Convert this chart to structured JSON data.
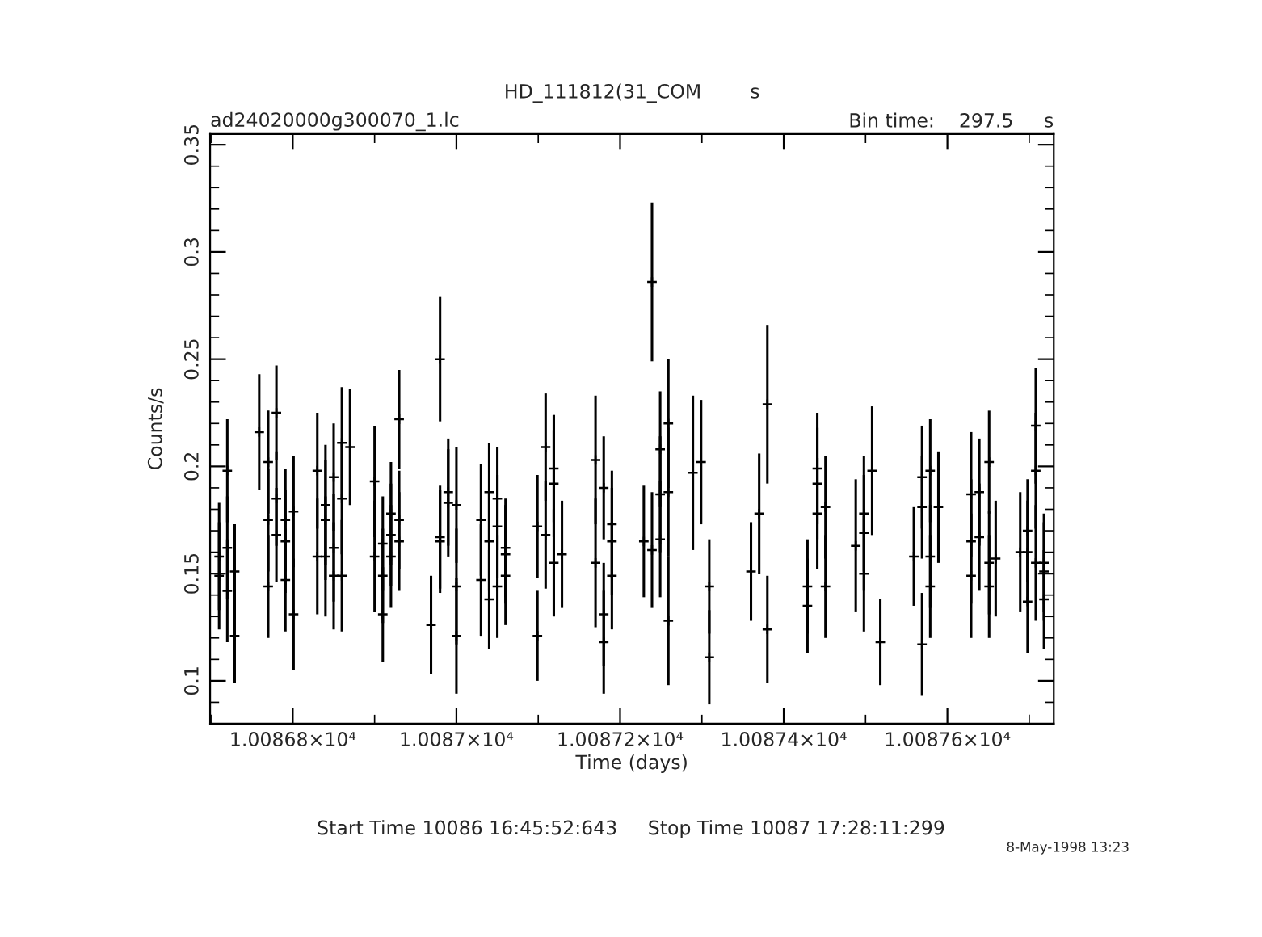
{
  "chart_data": {
    "type": "scatter",
    "title": "HD_111812(31_COM        s",
    "subtitle": "ad24020000g300070_1.lc",
    "xlabel": "Time (days)",
    "ylabel": "Counts/s",
    "annotations": [
      "Bin time:    297.5     s",
      "Start Time 10086 16:45:52:643     Stop Time 10087 17:28:11:299",
      "8-May-1998 13:23"
    ],
    "series": [
      {
        "color": "#000000",
        "x": [
          10086.71,
          10086.71,
          10086.72,
          10086.72,
          10086.72,
          10086.729,
          10086.729,
          10086.759,
          10086.77,
          10086.77,
          10086.77,
          10086.78,
          10086.78,
          10086.78,
          10086.791,
          10086.791,
          10086.791,
          10086.801,
          10086.801,
          10086.83,
          10086.83,
          10086.84,
          10086.84,
          10086.84,
          10086.85,
          10086.85,
          10086.85,
          10086.86,
          10086.86,
          10086.86,
          10086.87,
          10086.9,
          10086.9,
          10086.91,
          10086.91,
          10086.91,
          10086.92,
          10086.92,
          10086.92,
          10086.93,
          10086.93,
          10086.93,
          10086.969,
          10086.98,
          10086.98,
          10086.98,
          10086.99,
          10086.99,
          10087.0,
          10087.0,
          10087.0,
          10087.03,
          10087.03,
          10087.04,
          10087.04,
          10087.04,
          10087.05,
          10087.05,
          10087.05,
          10087.06,
          10087.06,
          10087.06,
          10087.099,
          10087.099,
          10087.109,
          10087.109,
          10087.119,
          10087.119,
          10087.119,
          10087.129,
          10087.17,
          10087.17,
          10087.18,
          10087.18,
          10087.18,
          10087.19,
          10087.19,
          10087.19,
          10087.229,
          10087.239,
          10087.239,
          10087.249,
          10087.249,
          10087.249,
          10087.259,
          10087.259,
          10087.259,
          10087.289,
          10087.299,
          10087.309,
          10087.309,
          10087.36,
          10087.37,
          10087.38,
          10087.38,
          10087.429,
          10087.429,
          10087.441,
          10087.441,
          10087.441,
          10087.451,
          10087.451,
          10087.488,
          10087.498,
          10087.498,
          10087.498,
          10087.508,
          10087.518,
          10087.559,
          10087.569,
          10087.569,
          10087.569,
          10087.579,
          10087.579,
          10087.579,
          10087.589,
          10087.629,
          10087.629,
          10087.629,
          10087.639,
          10087.639,
          10087.651,
          10087.651,
          10087.651,
          10087.659,
          10087.689,
          10087.698,
          10087.698,
          10087.698,
          10087.708,
          10087.708,
          10087.708,
          10087.718,
          10087.718,
          10087.718
        ],
        "values": [
          0.158,
          0.149,
          0.198,
          0.162,
          0.142,
          0.151,
          0.121,
          0.216,
          0.202,
          0.175,
          0.144,
          0.225,
          0.185,
          0.168,
          0.175,
          0.165,
          0.147,
          0.179,
          0.131,
          0.198,
          0.158,
          0.182,
          0.175,
          0.158,
          0.195,
          0.162,
          0.149,
          0.211,
          0.185,
          0.149,
          0.209,
          0.193,
          0.158,
          0.164,
          0.149,
          0.131,
          0.178,
          0.168,
          0.158,
          0.222,
          0.175,
          0.165,
          0.126,
          0.25,
          0.167,
          0.165,
          0.188,
          0.183,
          0.182,
          0.144,
          0.121,
          0.175,
          0.147,
          0.188,
          0.165,
          0.138,
          0.185,
          0.172,
          0.144,
          0.162,
          0.159,
          0.149,
          0.172,
          0.121,
          0.209,
          0.168,
          0.199,
          0.192,
          0.155,
          0.159,
          0.203,
          0.155,
          0.19,
          0.131,
          0.118,
          0.173,
          0.165,
          0.149,
          0.165,
          0.286,
          0.161,
          0.208,
          0.187,
          0.166,
          0.22,
          0.188,
          0.128,
          0.197,
          0.202,
          0.144,
          0.111,
          0.151,
          0.178,
          0.229,
          0.124,
          0.144,
          0.135,
          0.199,
          0.192,
          0.178,
          0.181,
          0.144,
          0.163,
          0.178,
          0.169,
          0.15,
          0.198,
          0.118,
          0.158,
          0.195,
          0.181,
          0.117,
          0.198,
          0.158,
          0.144,
          0.181,
          0.187,
          0.165,
          0.149,
          0.188,
          0.167,
          0.202,
          0.155,
          0.144,
          0.157,
          0.16,
          0.17,
          0.16,
          0.137,
          0.219,
          0.198,
          0.155,
          0.155,
          0.151,
          0.138
        ],
        "errors": [
          0.025,
          0.025,
          0.024,
          0.024,
          0.024,
          0.022,
          0.022,
          0.027,
          0.024,
          0.024,
          0.024,
          0.022,
          0.022,
          0.022,
          0.024,
          0.024,
          0.024,
          0.026,
          0.026,
          0.027,
          0.027,
          0.028,
          0.028,
          0.028,
          0.025,
          0.025,
          0.025,
          0.026,
          0.026,
          0.026,
          0.027,
          0.026,
          0.026,
          0.022,
          0.022,
          0.022,
          0.024,
          0.024,
          0.024,
          0.023,
          0.023,
          0.023,
          0.023,
          0.029,
          0.024,
          0.024,
          0.025,
          0.025,
          0.027,
          0.027,
          0.027,
          0.026,
          0.026,
          0.023,
          0.023,
          0.023,
          0.024,
          0.024,
          0.024,
          0.023,
          0.023,
          0.023,
          0.024,
          0.021,
          0.025,
          0.025,
          0.025,
          0.025,
          0.025,
          0.025,
          0.03,
          0.03,
          0.024,
          0.024,
          0.024,
          0.025,
          0.025,
          0.025,
          0.026,
          0.037,
          0.027,
          0.027,
          0.027,
          0.027,
          0.03,
          0.03,
          0.03,
          0.036,
          0.029,
          0.022,
          0.022,
          0.023,
          0.028,
          0.037,
          0.025,
          0.022,
          0.022,
          0.026,
          0.026,
          0.026,
          0.024,
          0.024,
          0.031,
          0.027,
          0.027,
          0.027,
          0.03,
          0.02,
          0.023,
          0.024,
          0.024,
          0.024,
          0.024,
          0.024,
          0.024,
          0.026,
          0.029,
          0.029,
          0.029,
          0.025,
          0.025,
          0.024,
          0.024,
          0.024,
          0.027,
          0.028,
          0.024,
          0.024,
          0.024,
          0.027,
          0.027,
          0.027,
          0.023,
          0.023,
          0.023
        ]
      }
    ],
    "marker": "cross",
    "xlim": [
      10086.699,
      10087.73
    ],
    "ylim": [
      0.08,
      0.355
    ],
    "xticks": [
      {
        "value": 10086.8,
        "label": "1.00868×10⁴"
      },
      {
        "value": 10087.0,
        "label": "1.0087×10⁴"
      },
      {
        "value": 10087.2,
        "label": "1.00872×10⁴"
      },
      {
        "value": 10087.4,
        "label": "1.00874×10⁴"
      },
      {
        "value": 10087.6,
        "label": "1.00876×10⁴"
      }
    ],
    "yticks": [
      0.1,
      0.15,
      0.2,
      0.25,
      0.3,
      0.35
    ],
    "grid": false,
    "legend": false
  }
}
